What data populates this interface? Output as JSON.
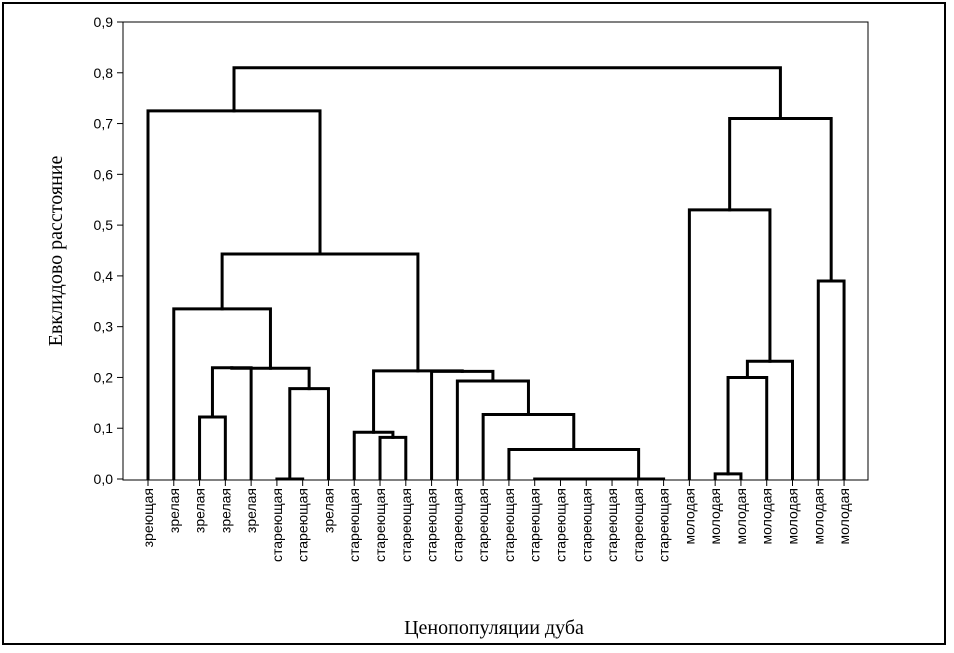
{
  "chart_data": {
    "type": "dendrogram",
    "title": "",
    "xlabel": "Ценопопуляции дуба",
    "ylabel": "Евклидово расстояние",
    "ylim": [
      0,
      0.9
    ],
    "yticks": [
      "0,0",
      "0,1",
      "0,2",
      "0,3",
      "0,4",
      "0,5",
      "0,6",
      "0,7",
      "0,8",
      "0,9"
    ],
    "leaves": [
      "зреющая",
      "зрелая",
      "зрелая",
      "зрелая",
      "зрелая",
      "стареющая",
      "стареющая",
      "зрелая",
      "стареющая",
      "стареющая",
      "стареющая",
      "стареющая",
      "стареющая",
      "стареющая",
      "стареющая",
      "стареющая",
      "стареющая",
      "стареющая",
      "стареющая",
      "стареющая",
      "стареющая",
      "молодая",
      "молодая",
      "молодая",
      "молодая",
      "молодая",
      "молодая",
      "молодая"
    ],
    "merges": [
      {
        "left": "L5",
        "right": "L6",
        "height": 0.0
      },
      {
        "left": "L15",
        "right": "L16",
        "height": 0.0
      },
      {
        "left": "m1",
        "right": "L17",
        "height": 0.0
      },
      {
        "left": "m2",
        "right": "L18",
        "height": 0.0
      },
      {
        "left": "m3",
        "right": "L19",
        "height": 0.0
      },
      {
        "left": "m4",
        "right": "L20",
        "height": 0.0
      },
      {
        "left": "L22",
        "right": "L23",
        "height": 0.01
      },
      {
        "left": "L14",
        "right": "m5",
        "height": 0.058
      },
      {
        "left": "L9",
        "right": "L10",
        "height": 0.082
      },
      {
        "left": "L8",
        "right": "m8",
        "height": 0.092
      },
      {
        "left": "L2",
        "right": "L3",
        "height": 0.122
      },
      {
        "left": "L13",
        "right": "m7",
        "height": 0.127
      },
      {
        "left": "m0",
        "right": "L7",
        "height": 0.178
      },
      {
        "left": "L12",
        "right": "m11",
        "height": 0.193
      },
      {
        "left": "m6",
        "right": "L24",
        "height": 0.2
      },
      {
        "left": "m10",
        "right": "L4",
        "height": 0.219
      },
      {
        "left": "m15",
        "right": "m12",
        "height": 0.218
      },
      {
        "left": "L11",
        "right": "m13",
        "height": 0.212
      },
      {
        "left": "m9",
        "right": "m17",
        "height": 0.213
      },
      {
        "left": "m14",
        "right": "L25",
        "height": 0.232
      },
      {
        "left": "L1",
        "right": "m16",
        "height": 0.335
      },
      {
        "left": "L26",
        "right": "L27",
        "height": 0.39
      },
      {
        "left": "m20",
        "right": "m18",
        "height": 0.443
      },
      {
        "left": "L21",
        "right": "m19",
        "height": 0.53
      },
      {
        "left": "m23",
        "right": "m21",
        "height": 0.71
      },
      {
        "left": "L0",
        "right": "m22",
        "height": 0.725
      },
      {
        "left": "m25",
        "right": "m24",
        "height": 0.81
      }
    ]
  }
}
